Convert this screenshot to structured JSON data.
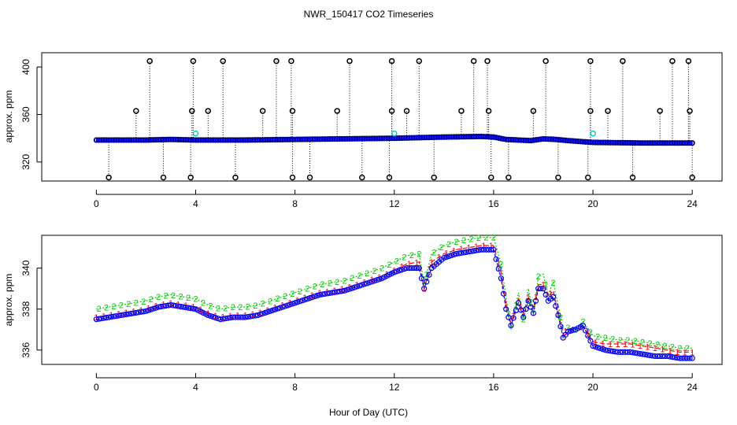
{
  "title": "NWR_150417  CO2 Timeseries",
  "xlabel": "Hour of Day (UTC)",
  "chart_data": [
    {
      "type": "scatter",
      "panel": "top",
      "ylabel": "approx. ppm",
      "xlim": [
        -2.2,
        25.2
      ],
      "ylim": [
        304,
        412
      ],
      "xticks": [
        0,
        4,
        8,
        12,
        16,
        20,
        24
      ],
      "yticks": [
        320,
        360,
        400
      ],
      "baseline": [
        [
          0,
          338.5
        ],
        [
          2,
          338.5
        ],
        [
          3,
          339
        ],
        [
          4,
          338.5
        ],
        [
          6,
          338.5
        ],
        [
          8,
          339
        ],
        [
          10,
          339.5
        ],
        [
          12,
          340
        ],
        [
          13,
          340.5
        ],
        [
          14,
          341
        ],
        [
          15.5,
          341.5
        ],
        [
          16,
          341
        ],
        [
          16.5,
          339
        ],
        [
          17.5,
          338
        ],
        [
          18,
          339.5
        ],
        [
          18.5,
          339
        ],
        [
          19,
          338
        ],
        [
          20,
          336.5
        ],
        [
          22,
          336
        ],
        [
          24,
          336
        ]
      ],
      "spikes_high": [
        [
          1.6,
          363
        ],
        [
          2.15,
          405
        ],
        [
          3.9,
          405
        ],
        [
          3.85,
          363
        ],
        [
          4.5,
          363
        ],
        [
          5.1,
          405
        ],
        [
          6.7,
          363
        ],
        [
          7.25,
          405
        ],
        [
          7.85,
          405
        ],
        [
          7.9,
          363
        ],
        [
          9.7,
          363
        ],
        [
          10.2,
          405
        ],
        [
          11.9,
          405
        ],
        [
          11.9,
          363
        ],
        [
          12.5,
          363
        ],
        [
          13.0,
          405
        ],
        [
          14.7,
          363
        ],
        [
          15.2,
          405
        ],
        [
          15.75,
          405
        ],
        [
          15.8,
          363
        ],
        [
          17.6,
          363
        ],
        [
          18.1,
          405
        ],
        [
          19.9,
          405
        ],
        [
          19.9,
          363
        ],
        [
          20.6,
          363
        ],
        [
          21.2,
          405
        ],
        [
          22.7,
          363
        ],
        [
          23.2,
          405
        ],
        [
          23.85,
          405
        ],
        [
          23.9,
          363
        ]
      ],
      "spikes_low": [
        [
          0.5,
          307
        ],
        [
          2.7,
          307
        ],
        [
          3.8,
          307
        ],
        [
          5.6,
          307
        ],
        [
          7.9,
          307
        ],
        [
          8.6,
          307
        ],
        [
          10.7,
          307
        ],
        [
          11.8,
          307
        ],
        [
          13.6,
          307
        ],
        [
          15.9,
          307
        ],
        [
          16.6,
          307
        ],
        [
          18.6,
          307
        ],
        [
          19.8,
          307
        ],
        [
          21.6,
          307
        ],
        [
          24,
          307
        ]
      ],
      "highlights": [
        [
          4,
          344
        ],
        [
          12,
          344
        ],
        [
          20,
          344
        ]
      ]
    },
    {
      "type": "line",
      "panel": "bottom",
      "ylabel": "approx. ppm",
      "xlim": [
        -2.2,
        25.2
      ],
      "ylim": [
        335.3,
        341.6
      ],
      "xticks": [
        0,
        4,
        8,
        12,
        16,
        20,
        24
      ],
      "yticks": [
        336,
        338,
        340
      ],
      "series": [
        {
          "name": "1",
          "color": "#ff0000"
        },
        {
          "name": "2",
          "color": "#00cc00"
        },
        {
          "name": "3",
          "color": "#0000ff"
        }
      ],
      "x": [
        0,
        0.5,
        1,
        1.5,
        2,
        2.5,
        3,
        3.5,
        4,
        4.5,
        5,
        5.5,
        6,
        6.5,
        7,
        7.5,
        8,
        8.5,
        9,
        9.5,
        10,
        10.5,
        11,
        11.5,
        12,
        12.5,
        13,
        13.2,
        13.5,
        14,
        14.5,
        15,
        15.5,
        16,
        16.3,
        16.5,
        16.7,
        17,
        17.2,
        17.4,
        17.6,
        17.8,
        18,
        18.2,
        18.4,
        18.6,
        18.8,
        19,
        19.3,
        19.6,
        20,
        20.5,
        21,
        21.5,
        22,
        22.5,
        23,
        23.5,
        24
      ],
      "series_values": [
        [
          337.6,
          337.7,
          337.8,
          337.9,
          338.0,
          338.2,
          338.3,
          338.2,
          338.1,
          337.8,
          337.6,
          337.7,
          337.7,
          337.8,
          338.0,
          338.2,
          338.4,
          338.6,
          338.8,
          338.9,
          339.0,
          339.2,
          339.4,
          339.6,
          339.9,
          340.2,
          340.3,
          339.0,
          340.3,
          340.7,
          340.9,
          341.0,
          341.1,
          341.1,
          339.8,
          338.2,
          337.3,
          338.5,
          337.8,
          338.6,
          338.0,
          339.2,
          339.2,
          338.6,
          338.9,
          337.8,
          336.8,
          337.0,
          337.0,
          337.2,
          336.4,
          336.3,
          336.3,
          336.3,
          336.2,
          336.1,
          336.0,
          335.9,
          335.9
        ],
        [
          338.0,
          338.1,
          338.2,
          338.3,
          338.4,
          338.6,
          338.7,
          338.6,
          338.5,
          338.2,
          338.0,
          338.1,
          338.1,
          338.2,
          338.4,
          338.6,
          338.8,
          339.0,
          339.2,
          339.3,
          339.4,
          339.6,
          339.8,
          340.0,
          340.3,
          340.6,
          340.7,
          339.2,
          340.7,
          341.1,
          341.3,
          341.4,
          341.5,
          341.5,
          340.2,
          338.6,
          337.0,
          338.8,
          337.5,
          339.0,
          337.7,
          339.6,
          339.7,
          338.7,
          339.3,
          338.2,
          337.0,
          337.1,
          337.0,
          337.4,
          336.7,
          336.6,
          336.5,
          336.5,
          336.4,
          336.3,
          336.2,
          336.1,
          336.1
        ],
        [
          337.5,
          337.6,
          337.7,
          337.8,
          337.9,
          338.1,
          338.2,
          338.1,
          338.0,
          337.7,
          337.5,
          337.6,
          337.6,
          337.7,
          337.9,
          338.1,
          338.3,
          338.5,
          338.7,
          338.8,
          338.9,
          339.1,
          339.3,
          339.5,
          339.8,
          340.0,
          340.0,
          339.0,
          340.0,
          340.5,
          340.7,
          340.8,
          340.9,
          340.9,
          339.5,
          338.0,
          337.2,
          338.3,
          337.6,
          338.4,
          337.8,
          339.0,
          339.0,
          338.4,
          338.6,
          337.7,
          336.6,
          336.9,
          337.0,
          337.2,
          336.2,
          336.0,
          335.9,
          335.9,
          335.8,
          335.7,
          335.7,
          335.6,
          335.6
        ]
      ]
    }
  ]
}
